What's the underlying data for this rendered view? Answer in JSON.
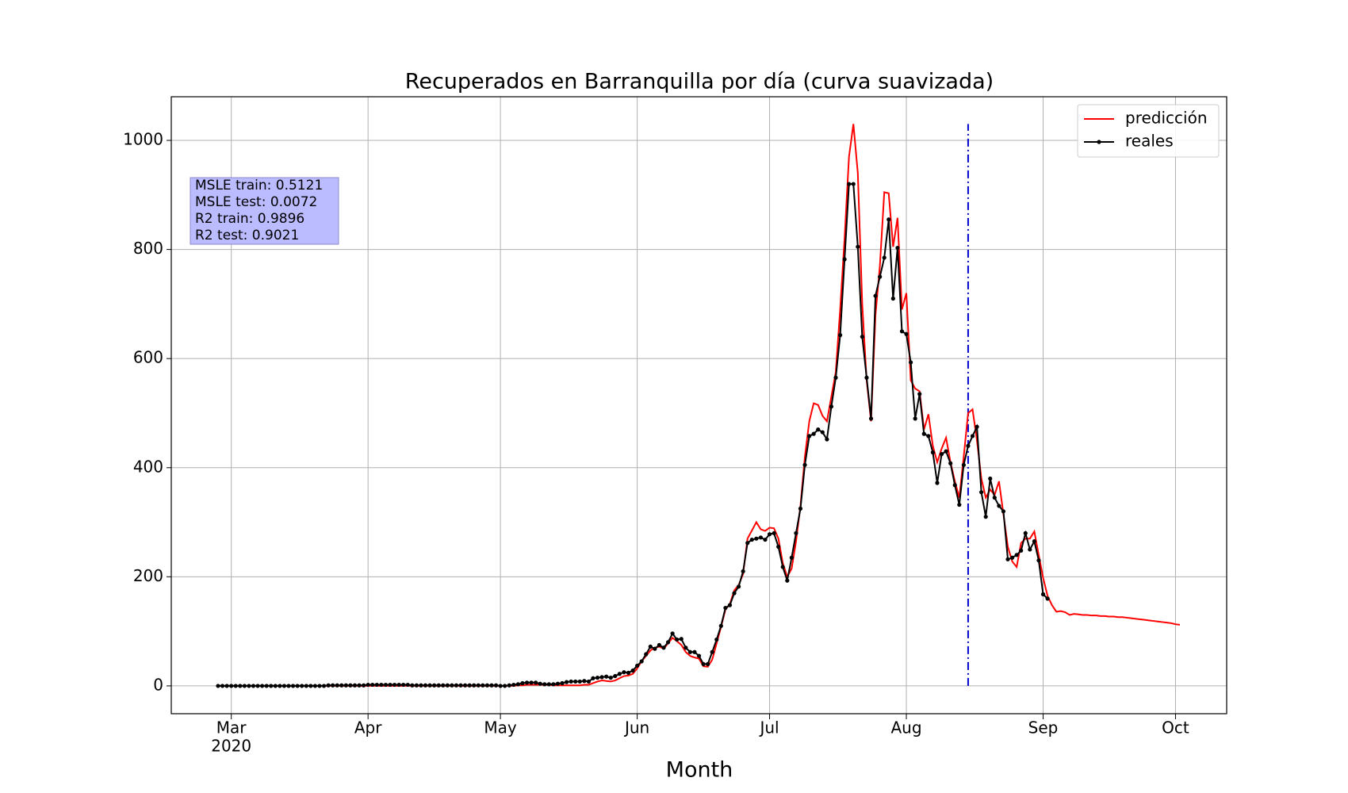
{
  "chart_data": {
    "type": "line",
    "title": "Recuperados en Barranquilla por día (curva suavizada)",
    "x_label": "Month",
    "xlim": [
      -13.6,
      225.6
    ],
    "ylim": [
      -51,
      1080
    ],
    "xticks": [
      {
        "value": 0,
        "label": "Mar"
      },
      {
        "value": 31,
        "label": "Apr"
      },
      {
        "value": 61,
        "label": "May"
      },
      {
        "value": 92,
        "label": "Jun"
      },
      {
        "value": 122,
        "label": "Jul"
      },
      {
        "value": 153,
        "label": "Aug"
      },
      {
        "value": 184,
        "label": "Sep"
      },
      {
        "value": 214,
        "label": "Oct"
      }
    ],
    "x_year_label": "2020",
    "yticks": [
      0,
      200,
      400,
      600,
      800,
      1000
    ],
    "grid": true,
    "legend": "upper right",
    "annotations": [
      "MSLE train: 0.5121",
      "MSLE test: 0.0072",
      "R2 train: 0.9896",
      "R2 test: 0.9021"
    ],
    "vline": {
      "x": 167,
      "ymin": 0,
      "ymax": 1030,
      "color": "#0000cc"
    },
    "x": [
      -3,
      -2,
      -1,
      0,
      1,
      2,
      3,
      4,
      5,
      6,
      7,
      8,
      9,
      10,
      11,
      12,
      13,
      14,
      15,
      16,
      17,
      18,
      19,
      20,
      21,
      22,
      23,
      24,
      25,
      26,
      27,
      28,
      29,
      30,
      31,
      32,
      33,
      34,
      35,
      36,
      37,
      38,
      39,
      40,
      41,
      42,
      43,
      44,
      45,
      46,
      47,
      48,
      49,
      50,
      51,
      52,
      53,
      54,
      55,
      56,
      57,
      58,
      59,
      60,
      61,
      62,
      63,
      64,
      65,
      66,
      67,
      68,
      69,
      70,
      71,
      72,
      73,
      74,
      75,
      76,
      77,
      78,
      79,
      80,
      81,
      82,
      83,
      84,
      85,
      86,
      87,
      88,
      89,
      90,
      91,
      92,
      93,
      94,
      95,
      96,
      97,
      98,
      99,
      100,
      101,
      102,
      103,
      104,
      105,
      106,
      107,
      108,
      109,
      110,
      111,
      112,
      113,
      114,
      115,
      116,
      117,
      118,
      119,
      120,
      121,
      122,
      123,
      124,
      125,
      126,
      127,
      128,
      129,
      130,
      131,
      132,
      133,
      134,
      135,
      136,
      137,
      138,
      139,
      140,
      141,
      142,
      143,
      144,
      145,
      146,
      147,
      148,
      149,
      150,
      151,
      152,
      153,
      154,
      155,
      156,
      157,
      158,
      159,
      160,
      161,
      162,
      163,
      164,
      165,
      166,
      167,
      168,
      169,
      170,
      171,
      172,
      173,
      174,
      175,
      176,
      177,
      178,
      179,
      180,
      181,
      182,
      183,
      184,
      185,
      186,
      187,
      188,
      189,
      190,
      191,
      192,
      193,
      194,
      195,
      196,
      197,
      198,
      199,
      200,
      201,
      202,
      203,
      204,
      205,
      206,
      207,
      208,
      209,
      210,
      211,
      212,
      213,
      214,
      215
    ],
    "series": [
      {
        "name": "predicción",
        "color": "#ff0000",
        "marker": false,
        "values": [
          0,
          0,
          0,
          0,
          0,
          0,
          0,
          0,
          0,
          0,
          0,
          0,
          0,
          0,
          0,
          0,
          0,
          0,
          0,
          0,
          0,
          0,
          0,
          0,
          0,
          0,
          0,
          0,
          0,
          0,
          0,
          0,
          0,
          0,
          0,
          0,
          0,
          0,
          0,
          0,
          0,
          0,
          0,
          0,
          0,
          0,
          0,
          0,
          0,
          0,
          0,
          0,
          0,
          0,
          0,
          0,
          0,
          0,
          0,
          0,
          0,
          0,
          0,
          0,
          0,
          0,
          0,
          0,
          1,
          1,
          2,
          2,
          2,
          2,
          2,
          2,
          1,
          1,
          1,
          1,
          1,
          1,
          1,
          2,
          2,
          5,
          8,
          10,
          9,
          8,
          10,
          14,
          18,
          19,
          22,
          32,
          45,
          55,
          65,
          70,
          72,
          68,
          78,
          88,
          82,
          75,
          62,
          55,
          52,
          50,
          36,
          35,
          48,
          78,
          108,
          140,
          150,
          175,
          185,
          205,
          270,
          285,
          300,
          287,
          284,
          290,
          289,
          270,
          225,
          200,
          215,
          265,
          330,
          420,
          485,
          518,
          515,
          495,
          485,
          530,
          575,
          690,
          820,
          970,
          1030,
          940,
          700,
          560,
          485,
          680,
          770,
          905,
          903,
          805,
          858,
          690,
          720,
          560,
          545,
          540,
          470,
          498,
          440,
          410,
          435,
          455,
          410,
          375,
          345,
          420,
          500,
          507,
          450,
          380,
          345,
          360,
          350,
          375,
          315,
          255,
          228,
          218,
          262,
          270,
          270,
          283,
          240,
          198,
          165,
          148,
          136,
          137,
          135,
          130,
          132,
          131,
          130,
          130,
          129,
          129,
          128,
          128,
          127,
          127,
          126,
          126,
          125,
          124,
          123,
          122,
          121,
          120,
          119,
          118,
          117,
          116,
          115,
          113,
          112
        ]
      },
      {
        "name": "reales",
        "color": "#000000",
        "marker": true,
        "values": [
          0,
          0,
          0,
          0,
          0,
          0,
          0,
          0,
          0,
          0,
          0,
          0,
          0,
          0,
          0,
          0,
          0,
          0,
          0,
          0,
          0,
          0,
          0,
          0,
          0,
          1,
          1,
          1,
          1,
          1,
          1,
          1,
          1,
          1,
          2,
          2,
          2,
          2,
          2,
          2,
          2,
          2,
          2,
          2,
          1,
          1,
          1,
          1,
          1,
          1,
          1,
          1,
          1,
          1,
          1,
          1,
          1,
          1,
          1,
          1,
          1,
          1,
          1,
          1,
          0,
          0,
          1,
          2,
          3,
          5,
          6,
          6,
          6,
          4,
          3,
          3,
          3,
          4,
          5,
          7,
          8,
          8,
          8,
          9,
          8,
          14,
          15,
          16,
          17,
          15,
          18,
          22,
          25,
          24,
          28,
          37,
          45,
          58,
          72,
          68,
          75,
          70,
          80,
          96,
          85,
          86,
          70,
          62,
          62,
          55,
          40,
          40,
          62,
          85,
          110,
          143,
          148,
          170,
          182,
          210,
          262,
          268,
          270,
          272,
          268,
          278,
          280,
          255,
          218,
          193,
          235,
          280,
          325,
          405,
          458,
          462,
          470,
          465,
          452,
          512,
          565,
          643,
          782,
          920,
          920,
          805,
          640,
          565,
          490,
          715,
          750,
          785,
          855,
          710,
          803,
          650,
          645,
          593,
          490,
          535,
          462,
          458,
          428,
          372,
          425,
          430,
          408,
          368,
          332,
          405,
          440,
          458,
          475,
          355,
          310,
          380,
          345,
          330,
          320,
          232,
          235,
          240,
          248,
          280,
          250,
          265,
          230,
          168,
          160,
          null,
          null,
          null,
          null,
          null,
          null,
          null,
          null,
          null,
          null,
          null,
          null,
          null,
          null,
          null,
          null,
          null,
          null,
          null,
          null,
          null,
          null,
          null,
          null,
          null,
          null,
          null,
          null,
          null,
          null
        ]
      }
    ]
  }
}
